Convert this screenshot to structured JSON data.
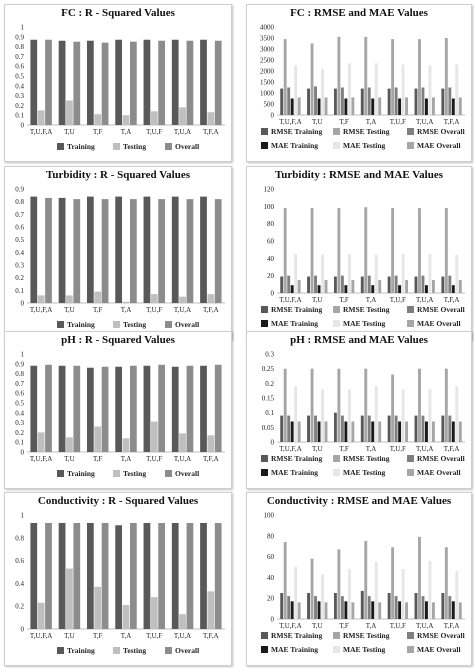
{
  "chart_data": [
    {
      "type": "bar",
      "title": "FC : R - Squared Values",
      "categories": [
        "T,U,F,A",
        "T,U",
        "T,F",
        "T,A",
        "T,U,F",
        "T,U,A",
        "T,F,A"
      ],
      "ylim": [
        0,
        1
      ],
      "yticks": [
        0,
        0.1,
        0.2,
        0.3,
        0.4,
        0.5,
        0.6,
        0.7,
        0.8,
        0.9,
        1
      ],
      "series": [
        {
          "name": "Training",
          "color": "#595959",
          "values": [
            0.87,
            0.86,
            0.86,
            0.87,
            0.87,
            0.87,
            0.87
          ]
        },
        {
          "name": "Testing",
          "color": "#bfbfbf",
          "values": [
            0.15,
            0.25,
            0.11,
            0.1,
            0.14,
            0.18,
            0.13
          ]
        },
        {
          "name": "Overall",
          "color": "#8c8c8c",
          "values": [
            0.87,
            0.85,
            0.84,
            0.85,
            0.86,
            0.86,
            0.86
          ]
        }
      ]
    },
    {
      "type": "bar",
      "title": "FC : RMSE and MAE Values",
      "categories": [
        "T,U,F,A",
        "T,U",
        "T,F",
        "T,A",
        "T,U,F",
        "T,U,A",
        "T,F,A"
      ],
      "ylim": [
        0,
        4000
      ],
      "yticks": [
        0,
        500,
        1000,
        1500,
        2000,
        2500,
        3000,
        3500,
        4000
      ],
      "series": [
        {
          "name": "RMSE Training",
          "color": "#595959",
          "values": [
            1200,
            1200,
            1200,
            1200,
            1200,
            1200,
            1200
          ]
        },
        {
          "name": "RMSE Testing",
          "color": "#a6a6a6",
          "values": [
            3450,
            3250,
            3550,
            3550,
            3450,
            3450,
            3500
          ]
        },
        {
          "name": "RMSE Overall",
          "color": "#7f7f7f",
          "values": [
            1250,
            1300,
            1250,
            1250,
            1250,
            1250,
            1250
          ]
        },
        {
          "name": "MAE Training",
          "color": "#1a1a1a",
          "values": [
            750,
            750,
            750,
            750,
            750,
            750,
            750
          ]
        },
        {
          "name": "MAE Testing",
          "color": "#e6e6e6",
          "values": [
            2250,
            2100,
            2350,
            2350,
            2300,
            2250,
            2300
          ]
        },
        {
          "name": "MAE Overall",
          "color": "#a6a6a6",
          "values": [
            800,
            800,
            800,
            800,
            800,
            800,
            800
          ]
        }
      ]
    },
    {
      "type": "bar",
      "title": "Turbidity : R - Squared Values",
      "categories": [
        "T,U,F,A",
        "T,U",
        "T,F",
        "T,A",
        "T,U,F",
        "T,U,A",
        "T,F,A"
      ],
      "ylim": [
        0,
        0.9
      ],
      "yticks": [
        0,
        0.1,
        0.2,
        0.3,
        0.4,
        0.5,
        0.6,
        0.7,
        0.8,
        0.9
      ],
      "series": [
        {
          "name": "Training",
          "color": "#595959",
          "values": [
            0.84,
            0.83,
            0.84,
            0.84,
            0.84,
            0.84,
            0.84
          ]
        },
        {
          "name": "Testing",
          "color": "#bfbfbf",
          "values": [
            0.06,
            0.06,
            0.09,
            0.01,
            0.07,
            0.05,
            0.07
          ]
        },
        {
          "name": "Overall",
          "color": "#8c8c8c",
          "values": [
            0.83,
            0.82,
            0.82,
            0.82,
            0.82,
            0.82,
            0.82
          ]
        }
      ]
    },
    {
      "type": "bar",
      "title": "Turbidity : RMSE and MAE Values",
      "categories": [
        "T,U,F,A",
        "T,U",
        "T,F",
        "T,A",
        "T,U,F",
        "T,U,A",
        "T,F,A"
      ],
      "ylim": [
        0,
        120
      ],
      "yticks": [
        0,
        20,
        40,
        60,
        80,
        100,
        120
      ],
      "series": [
        {
          "name": "RMSE Training",
          "color": "#595959",
          "values": [
            19,
            19,
            19,
            19,
            19,
            19,
            19
          ]
        },
        {
          "name": "RMSE Testing",
          "color": "#a6a6a6",
          "values": [
            98,
            98,
            98,
            99,
            98,
            98,
            98
          ]
        },
        {
          "name": "RMSE Overall",
          "color": "#7f7f7f",
          "values": [
            20,
            20,
            20,
            20,
            20,
            20,
            20
          ]
        },
        {
          "name": "MAE Training",
          "color": "#1a1a1a",
          "values": [
            9,
            9,
            9,
            9,
            9,
            9,
            9
          ]
        },
        {
          "name": "MAE Testing",
          "color": "#e6e6e6",
          "values": [
            45,
            44,
            45,
            44,
            45,
            45,
            44
          ]
        },
        {
          "name": "MAE Overall",
          "color": "#a6a6a6",
          "values": [
            15,
            15,
            15,
            15,
            15,
            15,
            15
          ]
        }
      ]
    },
    {
      "type": "bar",
      "title": "pH : R - Squared Values",
      "categories": [
        "T,U,F,A",
        "T,U",
        "T,F",
        "T,A",
        "T,U,F",
        "T,U,A",
        "T,F,A"
      ],
      "ylim": [
        0,
        1
      ],
      "yticks": [
        0,
        0.1,
        0.2,
        0.3,
        0.4,
        0.5,
        0.6,
        0.7,
        0.8,
        0.9,
        1
      ],
      "series": [
        {
          "name": "Training",
          "color": "#595959",
          "values": [
            0.88,
            0.88,
            0.86,
            0.87,
            0.88,
            0.87,
            0.88
          ]
        },
        {
          "name": "Testing",
          "color": "#bfbfbf",
          "values": [
            0.2,
            0.15,
            0.26,
            0.14,
            0.31,
            0.19,
            0.17
          ]
        },
        {
          "name": "Overall",
          "color": "#8c8c8c",
          "values": [
            0.89,
            0.88,
            0.87,
            0.88,
            0.89,
            0.88,
            0.89
          ]
        }
      ]
    },
    {
      "type": "bar",
      "title": "pH : RMSE and MAE Values",
      "categories": [
        "T,U,F,A",
        "T,U",
        "T,F",
        "T,A",
        "T,U,F",
        "T,U,A",
        "T,F,A"
      ],
      "ylim": [
        0,
        0.3
      ],
      "yticks": [
        0,
        0.05,
        0.1,
        0.15,
        0.2,
        0.25,
        0.3
      ],
      "series": [
        {
          "name": "RMSE Training",
          "color": "#595959",
          "values": [
            0.09,
            0.09,
            0.1,
            0.09,
            0.09,
            0.09,
            0.09
          ]
        },
        {
          "name": "RMSE Testing",
          "color": "#a6a6a6",
          "values": [
            0.25,
            0.25,
            0.25,
            0.25,
            0.23,
            0.25,
            0.25
          ]
        },
        {
          "name": "RMSE Overall",
          "color": "#7f7f7f",
          "values": [
            0.09,
            0.09,
            0.09,
            0.09,
            0.09,
            0.09,
            0.09
          ]
        },
        {
          "name": "MAE Training",
          "color": "#1a1a1a",
          "values": [
            0.07,
            0.07,
            0.07,
            0.07,
            0.07,
            0.07,
            0.07
          ]
        },
        {
          "name": "MAE Testing",
          "color": "#e6e6e6",
          "values": [
            0.19,
            0.18,
            0.18,
            0.19,
            0.18,
            0.18,
            0.19
          ]
        },
        {
          "name": "MAE Overall",
          "color": "#a6a6a6",
          "values": [
            0.07,
            0.07,
            0.07,
            0.07,
            0.07,
            0.07,
            0.07
          ]
        }
      ]
    },
    {
      "type": "bar",
      "title": "Conductivity : R - Squared Values",
      "categories": [
        "T,U,F,A",
        "T,U",
        "T,F",
        "T,A",
        "T,U,F",
        "T,U,A",
        "T,F,A"
      ],
      "ylim": [
        0,
        1
      ],
      "yticks": [
        0,
        0.2,
        0.4,
        0.6,
        0.8,
        1
      ],
      "series": [
        {
          "name": "Training",
          "color": "#595959",
          "values": [
            0.93,
            0.93,
            0.93,
            0.91,
            0.93,
            0.93,
            0.93
          ]
        },
        {
          "name": "Testing",
          "color": "#bfbfbf",
          "values": [
            0.23,
            0.53,
            0.37,
            0.21,
            0.28,
            0.13,
            0.33
          ]
        },
        {
          "name": "Overall",
          "color": "#8c8c8c",
          "values": [
            0.93,
            0.93,
            0.93,
            0.93,
            0.93,
            0.93,
            0.93
          ]
        }
      ]
    },
    {
      "type": "bar",
      "title": "Conductivity : RMSE and MAE Values",
      "categories": [
        "T,U,F,A",
        "T,U",
        "T,F",
        "T,A",
        "T,U,F",
        "T,U,A",
        "T,F,A"
      ],
      "ylim": [
        0,
        100
      ],
      "yticks": [
        0,
        20,
        40,
        60,
        80,
        100
      ],
      "series": [
        {
          "name": "RMSE Training",
          "color": "#595959",
          "values": [
            25,
            25,
            25,
            27,
            25,
            25,
            25
          ]
        },
        {
          "name": "RMSE Testing",
          "color": "#a6a6a6",
          "values": [
            74,
            58,
            67,
            75,
            69,
            79,
            69
          ]
        },
        {
          "name": "RMSE Overall",
          "color": "#7f7f7f",
          "values": [
            22,
            22,
            22,
            22,
            22,
            22,
            22
          ]
        },
        {
          "name": "MAE Training",
          "color": "#1a1a1a",
          "values": [
            17,
            17,
            17,
            17,
            17,
            17,
            17
          ]
        },
        {
          "name": "MAE Testing",
          "color": "#e6e6e6",
          "values": [
            50,
            43,
            48,
            55,
            48,
            56,
            46
          ]
        },
        {
          "name": "MAE Overall",
          "color": "#a6a6a6",
          "values": [
            16,
            16,
            16,
            16,
            16,
            16,
            16
          ]
        }
      ]
    }
  ]
}
